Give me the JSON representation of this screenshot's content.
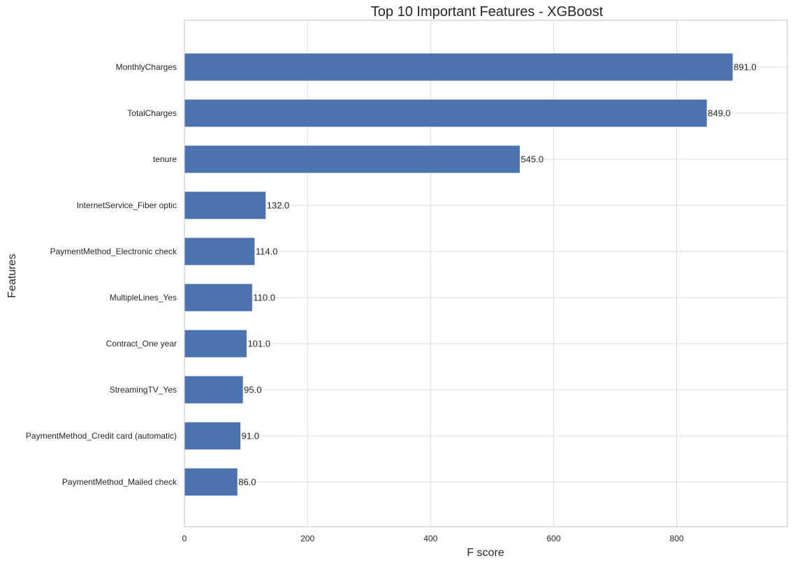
{
  "chart_data": {
    "type": "bar",
    "orientation": "horizontal",
    "title": "Top 10 Important Features - XGBoost",
    "xlabel": "F score",
    "ylabel": "Features",
    "categories": [
      "MonthlyCharges",
      "TotalCharges",
      "tenure",
      "InternetService_Fiber optic",
      "PaymentMethod_Electronic check",
      "MultipleLines_Yes",
      "Contract_One year",
      "StreamingTV_Yes",
      "PaymentMethod_Credit card (automatic)",
      "PaymentMethod_Mailed check"
    ],
    "values": [
      891,
      849,
      545,
      132,
      114,
      110,
      101,
      95,
      91,
      86
    ],
    "data_labels": [
      "891.0",
      "849.0",
      "545.0",
      "132.0",
      "114.0",
      "110.0",
      "101.0",
      "95.0",
      "91.0",
      "86.0"
    ],
    "xlim": [
      0,
      980
    ],
    "xticks": [
      0,
      200,
      400,
      600,
      800
    ],
    "xtick_labels": [
      "0",
      "200",
      "400",
      "600",
      "800"
    ],
    "grid": true,
    "colors": {
      "bar": "#4c72b0",
      "grid": "#dcdcdc",
      "spine": "#cccccc"
    }
  }
}
